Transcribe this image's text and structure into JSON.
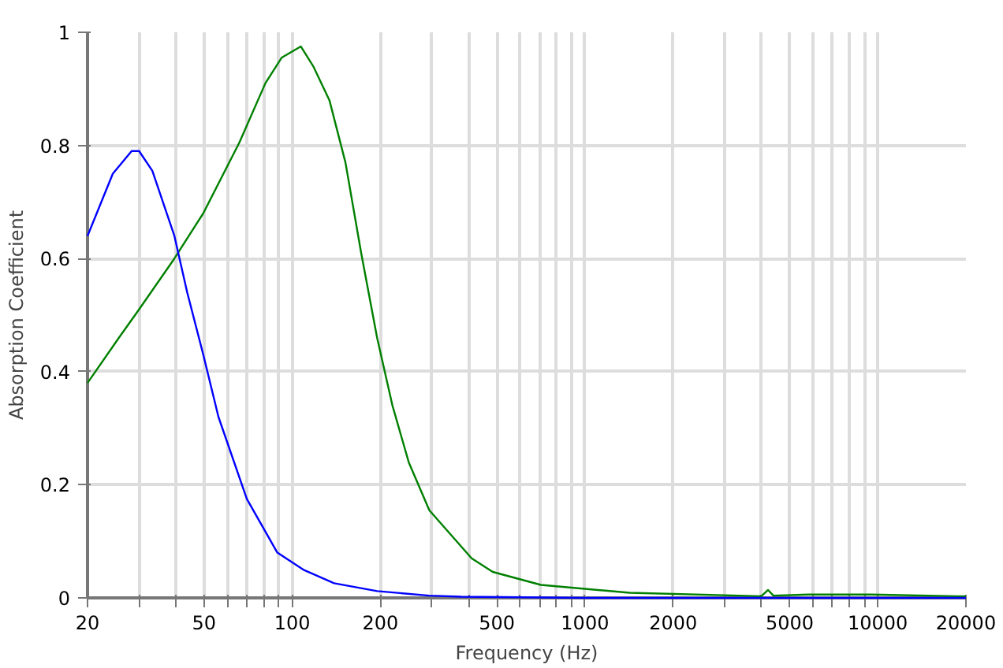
{
  "chart_data": {
    "type": "line",
    "xlabel": "Frequency (Hz)",
    "ylabel": "Absorption Coefficient",
    "log": "x",
    "grid": true,
    "marker": "none",
    "line_style": "solid",
    "xlim": [
      20,
      20000
    ],
    "ylim": [
      0,
      1
    ],
    "xticks": [
      20,
      {
        "value": 30,
        "label": null
      },
      {
        "value": 40,
        "label": null
      },
      50,
      {
        "value": 60,
        "label": null
      },
      {
        "value": 70,
        "label": null
      },
      {
        "value": 80,
        "label": null
      },
      {
        "value": 90,
        "label": null
      },
      100,
      200,
      {
        "value": 300,
        "label": null
      },
      {
        "value": 400,
        "label": null
      },
      500,
      {
        "value": 600,
        "label": null
      },
      {
        "value": 700,
        "label": null
      },
      {
        "value": 800,
        "label": null
      },
      {
        "value": 900,
        "label": null
      },
      1000,
      2000,
      {
        "value": 3000,
        "label": null
      },
      {
        "value": 4000,
        "label": null
      },
      5000,
      {
        "value": 6000,
        "label": null
      },
      {
        "value": 7000,
        "label": null
      },
      {
        "value": 8000,
        "label": null
      },
      {
        "value": 9000,
        "label": null
      },
      10000,
      20000
    ],
    "yticks": [
      0,
      0.2,
      0.4,
      0.6,
      0.8,
      1
    ],
    "series": [
      {
        "color": "#0000ff",
        "x": [
          20,
          24.4,
          28.3,
          30,
          33.3,
          39.6,
          43.8,
          49.7,
          56,
          70,
          89,
          109,
          139,
          195,
          294,
          378,
          1000,
          5000,
          20000
        ],
        "values": [
          0.64,
          0.75,
          0.79,
          0.79,
          0.755,
          0.64,
          0.54,
          0.43,
          0.32,
          0.175,
          0.08,
          0.05,
          0.026,
          0.012,
          0.004,
          0.002,
          0.0,
          0.0,
          0.0
        ]
      },
      {
        "color": "#008000",
        "x": [
          20,
          25.6,
          30,
          39.6,
          49.7,
          66,
          81,
          92,
          107,
          118,
          134,
          152,
          172,
          195,
          220,
          250,
          294,
          410,
          484,
          707,
          1422,
          4000,
          4220,
          4400,
          5850,
          9480,
          18700,
          20000
        ],
        "values": [
          0.38,
          0.46,
          0.51,
          0.6,
          0.68,
          0.805,
          0.91,
          0.955,
          0.975,
          0.94,
          0.88,
          0.77,
          0.61,
          0.46,
          0.34,
          0.24,
          0.155,
          0.07,
          0.046,
          0.023,
          0.009,
          0.003,
          0.014,
          0.004,
          0.006,
          0.006,
          0.003,
          0.003
        ]
      }
    ]
  }
}
